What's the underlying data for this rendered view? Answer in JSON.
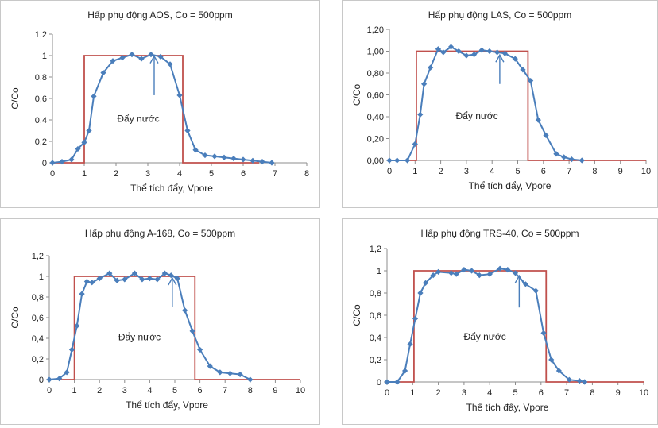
{
  "chart_data": [
    {
      "type": "line",
      "title": "Hấp phụ động AOS, Co = 500ppm",
      "xlabel": "Thể tích đẩy, Vpore",
      "ylabel": "C/Co",
      "annotation": "Đẩy nước",
      "xlim": [
        0,
        8
      ],
      "ylim": [
        0,
        1.2
      ],
      "xticks": [
        "0",
        "1",
        "2",
        "3",
        "4",
        "5",
        "6",
        "7",
        "8"
      ],
      "yticks": [
        "0",
        "0,2",
        "0,4",
        "0,6",
        "0,8",
        "1",
        "1,2"
      ],
      "colors": {
        "data": "#4a7ebb",
        "step": "#c0504d"
      },
      "series": [
        {
          "x": [
            0,
            0.3,
            0.6,
            0.8,
            1.0,
            1.15,
            1.3,
            1.6,
            1.9,
            2.2,
            2.5,
            2.8,
            3.1,
            3.4,
            3.7,
            4.0,
            4.25,
            4.5,
            4.8,
            5.1,
            5.4,
            5.7,
            6.0,
            6.3,
            6.6,
            6.9
          ],
          "y": [
            0,
            0.01,
            0.03,
            0.13,
            0.19,
            0.3,
            0.62,
            0.84,
            0.95,
            0.98,
            1.01,
            0.97,
            1.01,
            0.99,
            0.92,
            0.63,
            0.3,
            0.12,
            0.07,
            0.06,
            0.05,
            0.04,
            0.03,
            0.02,
            0.01,
            0.0
          ]
        },
        {
          "x": [
            0,
            1.0,
            1.0,
            4.1,
            4.1,
            6.5
          ],
          "y": [
            0,
            0,
            1,
            1,
            0,
            0
          ]
        }
      ],
      "arrow_at": {
        "x": 3.2,
        "y_from": 0.63,
        "y_to": 1.01
      }
    },
    {
      "type": "line",
      "title": "Hấp phụ động LAS, Co = 500ppm",
      "xlabel": "Thể tích đẩy, Vpore",
      "ylabel": "C/Co",
      "annotation": "Đẩy nước",
      "xlim": [
        0,
        10
      ],
      "ylim": [
        0,
        1.2
      ],
      "xticks": [
        "0",
        "1",
        "2",
        "3",
        "4",
        "5",
        "6",
        "7",
        "8",
        "9",
        "10"
      ],
      "yticks": [
        "0,00",
        "0,20",
        "0,40",
        "0,60",
        "0,80",
        "1,00",
        "1,20"
      ],
      "colors": {
        "data": "#4a7ebb",
        "step": "#c0504d"
      },
      "series": [
        {
          "x": [
            0,
            0.3,
            0.7,
            1.0,
            1.2,
            1.35,
            1.6,
            1.9,
            2.1,
            2.4,
            2.7,
            3.0,
            3.3,
            3.6,
            3.9,
            4.2,
            4.5,
            4.9,
            5.2,
            5.5,
            5.8,
            6.1,
            6.5,
            6.8,
            7.1,
            7.5
          ],
          "y": [
            0,
            0,
            0,
            0.15,
            0.42,
            0.7,
            0.85,
            1.02,
            0.99,
            1.04,
            1.0,
            0.96,
            0.97,
            1.01,
            1.0,
            0.99,
            0.98,
            0.93,
            0.83,
            0.73,
            0.37,
            0.23,
            0.06,
            0.03,
            0.01,
            0.0
          ]
        },
        {
          "x": [
            0,
            1.05,
            1.05,
            5.4,
            5.4,
            10
          ],
          "y": [
            0,
            0,
            1,
            1,
            0,
            0
          ]
        }
      ],
      "arrow_at": {
        "x": 4.3,
        "y_from": 0.7,
        "y_to": 0.98
      }
    },
    {
      "type": "line",
      "title": "Hấp phụ động A-168, Co = 500ppm",
      "xlabel": "Thể tích đẩy, Vpore",
      "ylabel": "C/Co",
      "annotation": "Đẩy nước",
      "xlim": [
        0,
        10
      ],
      "ylim": [
        0,
        1.2
      ],
      "xticks": [
        "0",
        "1",
        "2",
        "3",
        "4",
        "5",
        "6",
        "7",
        "8",
        "9",
        "10"
      ],
      "yticks": [
        "0",
        "0,2",
        "0,4",
        "0,6",
        "0,8",
        "1",
        "1,2"
      ],
      "colors": {
        "data": "#4a7ebb",
        "step": "#c0504d"
      },
      "series": [
        {
          "x": [
            0,
            0.4,
            0.7,
            0.9,
            1.1,
            1.3,
            1.5,
            1.7,
            2.0,
            2.4,
            2.7,
            3.0,
            3.4,
            3.7,
            4.0,
            4.3,
            4.6,
            4.85,
            5.1,
            5.4,
            5.7,
            6.0,
            6.4,
            6.8,
            7.2,
            7.6,
            8.0
          ],
          "y": [
            0,
            0.01,
            0.07,
            0.29,
            0.52,
            0.83,
            0.95,
            0.94,
            0.98,
            1.03,
            0.96,
            0.97,
            1.03,
            0.97,
            0.98,
            0.97,
            1.03,
            1.01,
            0.98,
            0.67,
            0.47,
            0.29,
            0.13,
            0.07,
            0.06,
            0.05,
            0.0
          ]
        },
        {
          "x": [
            0,
            1.0,
            1.0,
            5.8,
            5.8,
            10
          ],
          "y": [
            0,
            0,
            1,
            1,
            0,
            0
          ]
        }
      ],
      "arrow_at": {
        "x": 4.9,
        "y_from": 0.7,
        "y_to": 1.0
      }
    },
    {
      "type": "line",
      "title": "Hấp phụ động TRS-40, Co = 500ppm",
      "xlabel": "Thể tích đẩy, Vpore",
      "ylabel": "C/Co",
      "annotation": "Đẩy nước",
      "xlim": [
        0,
        10
      ],
      "ylim": [
        0,
        1.2
      ],
      "xticks": [
        "0",
        "1",
        "2",
        "3",
        "4",
        "5",
        "6",
        "7",
        "8",
        "9",
        "10"
      ],
      "yticks": [
        "0",
        "0,2",
        "0,4",
        "0,6",
        "0,8",
        "1",
        "1,2"
      ],
      "colors": {
        "data": "#4a7ebb",
        "step": "#c0504d"
      },
      "series": [
        {
          "x": [
            0,
            0.4,
            0.7,
            0.9,
            1.1,
            1.3,
            1.5,
            1.8,
            2.0,
            2.5,
            2.7,
            3.0,
            3.3,
            3.6,
            4.0,
            4.4,
            4.7,
            5.0,
            5.4,
            5.8,
            6.1,
            6.4,
            6.7,
            7.1,
            7.5,
            7.7
          ],
          "y": [
            0,
            0,
            0.1,
            0.34,
            0.57,
            0.8,
            0.89,
            0.96,
            0.99,
            0.98,
            0.97,
            1.01,
            1.0,
            0.96,
            0.97,
            1.02,
            1.01,
            0.98,
            0.88,
            0.82,
            0.44,
            0.2,
            0.1,
            0.02,
            0.01,
            0.0
          ]
        },
        {
          "x": [
            0,
            1.05,
            1.05,
            6.2,
            6.2,
            10
          ],
          "y": [
            0,
            0,
            1,
            1,
            0,
            0
          ]
        }
      ],
      "arrow_at": {
        "x": 5.15,
        "y_from": 0.67,
        "y_to": 0.97
      }
    }
  ]
}
